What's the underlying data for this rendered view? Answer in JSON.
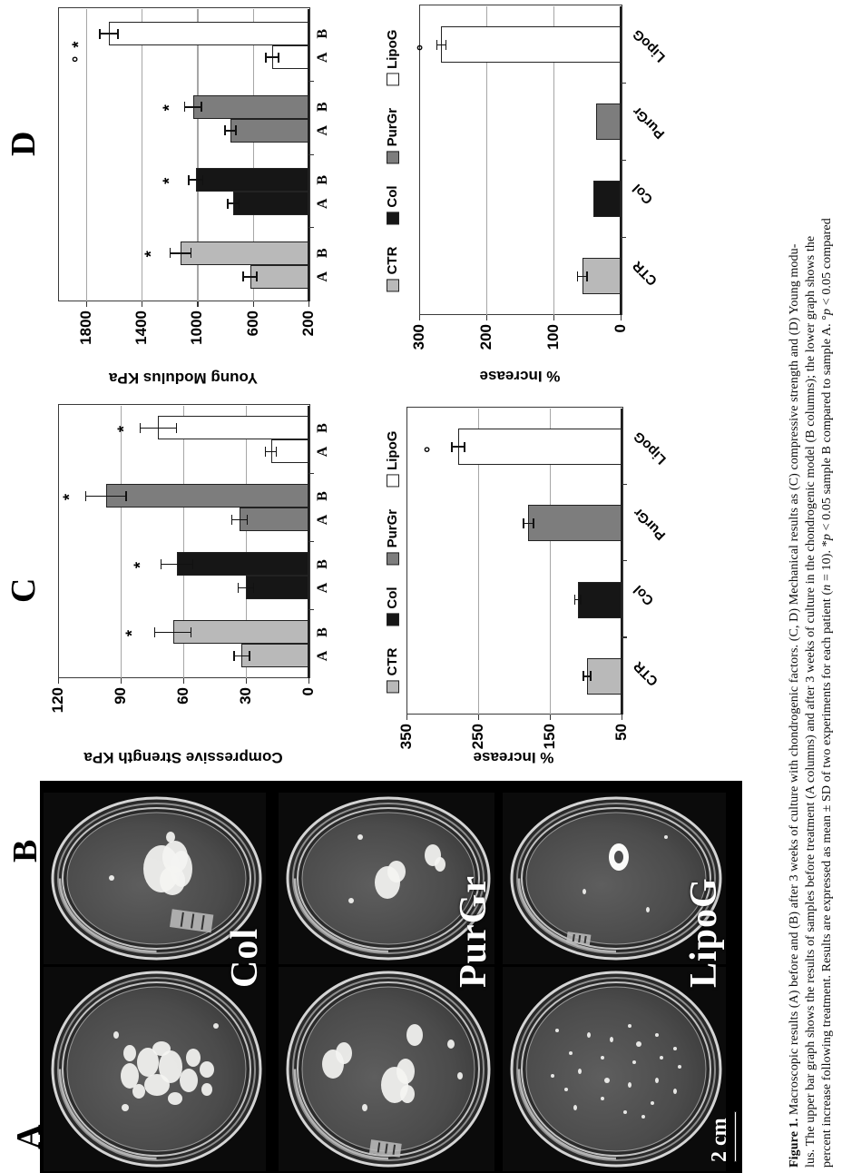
{
  "figure": {
    "panels": [
      {
        "label": "A"
      },
      {
        "label": "B"
      },
      {
        "label": "C"
      },
      {
        "label": "D"
      }
    ],
    "photo_panel": {
      "scale_bar": "2 cm",
      "rows": [
        {
          "label": "Col",
          "a_desc": "dish with many white cell aggregates scattered",
          "b_desc": "dish with one large compact aggregate"
        },
        {
          "label": "PurGr",
          "a_desc": "dish with three medium aggregates",
          "b_desc": "dish with two compact aggregates"
        },
        {
          "label": "LipoG",
          "a_desc": "dish with many small dispersed particles",
          "b_desc": "dish with one small ring-shaped aggregate"
        }
      ]
    },
    "legend": {
      "items": [
        {
          "label": "CTR",
          "color": "#b9b9b9",
          "dotted": true
        },
        {
          "label": "Col",
          "color": "#161616",
          "dotted": false
        },
        {
          "label": "PurGr",
          "color": "#7d7d7d",
          "dotted": true
        },
        {
          "label": "LipoG",
          "color": "#ffffff",
          "dotted": false
        }
      ]
    },
    "chart_data": [
      {
        "id": "c_upper",
        "panel": "C",
        "type": "bar",
        "ylabel": "Compressive Strength KPa",
        "ylim": [
          0,
          120
        ],
        "yticks": [
          0,
          30,
          60,
          90,
          120
        ],
        "categories": [
          "CTR",
          "Col",
          "PurGr",
          "LipoG"
        ],
        "bar_labels": [
          "A",
          "B"
        ],
        "series": [
          {
            "name": "A",
            "values": [
              32,
              30,
              33,
              18
            ],
            "errors": [
              4,
              4,
              4,
              3
            ]
          },
          {
            "name": "B",
            "values": [
              65,
              63,
              97,
              72
            ],
            "errors": [
              9,
              8,
              10,
              9
            ],
            "sig": [
              "*",
              "*",
              "*",
              "*"
            ],
            "sig_at": [
              84,
              80,
              114,
              88
            ]
          }
        ]
      },
      {
        "id": "c_lower",
        "panel": "C",
        "type": "bar",
        "ylabel": "% Increase",
        "ylim": [
          50,
          350
        ],
        "yticks": [
          50,
          150,
          250,
          350
        ],
        "categories": [
          "CTR",
          "Col",
          "PurGr",
          "LipoG"
        ],
        "values": [
          98,
          111,
          180,
          278
        ],
        "errors": [
          6,
          5,
          8,
          10
        ],
        "sig": [
          null,
          null,
          null,
          "°"
        ],
        "sig_at": [
          null,
          null,
          null,
          315
        ]
      },
      {
        "id": "d_upper",
        "panel": "D",
        "type": "bar",
        "ylabel": "Young Modulus KPa",
        "ylim": [
          200,
          2000
        ],
        "yticks": [
          200,
          600,
          1000,
          1400,
          1800
        ],
        "categories": [
          "CTR",
          "Col",
          "PurGr",
          "LipoG"
        ],
        "bar_labels": [
          "A",
          "B"
        ],
        "series": [
          {
            "name": "A",
            "values": [
              620,
              740,
              760,
              460
            ],
            "errors": [
              55,
              45,
              45,
              50
            ]
          },
          {
            "name": "B",
            "values": [
              1120,
              1010,
              1030,
              1635
            ],
            "errors": [
              80,
              55,
              65,
              70
            ],
            "sig": [
              "*",
              "*",
              "*",
              "° *"
            ],
            "sig_at": [
              1320,
              1190,
              1190,
              1845
            ]
          }
        ]
      },
      {
        "id": "d_lower",
        "panel": "D",
        "type": "bar",
        "ylabel": "% Increase",
        "ylim": [
          0,
          300
        ],
        "yticks": [
          0,
          100,
          200,
          300
        ],
        "categories": [
          "CTR",
          "Col",
          "PurGr",
          "LipoG"
        ],
        "values": [
          57,
          40,
          37,
          267
        ],
        "errors": [
          8,
          null,
          null,
          8
        ],
        "sig": [
          null,
          null,
          null,
          "°"
        ],
        "sig_at": [
          null,
          null,
          null,
          292
        ]
      }
    ],
    "caption": {
      "lines": [
        [
          {
            "t": "Figure 1.",
            "b": true
          },
          {
            "t": "  Macroscopic results (A) before and (B) after 3 weeks of culture with chondrogenic factors. (C, D) Mechanical results as (C) compressive strength and (D) Young modu-"
          }
        ],
        [
          {
            "t": "lus. The upper bar graph shows the results of samples before treatment (A columns) and after 3 weeks of culture in the chondrogenic model (B columns); the lower graph shows the"
          }
        ],
        [
          {
            "t": "percent increase following treatment. Results are expressed as mean ± SD of two experiments for each patient ("
          },
          {
            "t": "n",
            "i": true
          },
          {
            "t": " = 10). *"
          },
          {
            "t": "p",
            "i": true
          },
          {
            "t": " < 0.05 sample B compared to sample A. °"
          },
          {
            "t": "p",
            "i": true
          },
          {
            "t": " < 0.05 compared"
          }
        ]
      ]
    }
  }
}
